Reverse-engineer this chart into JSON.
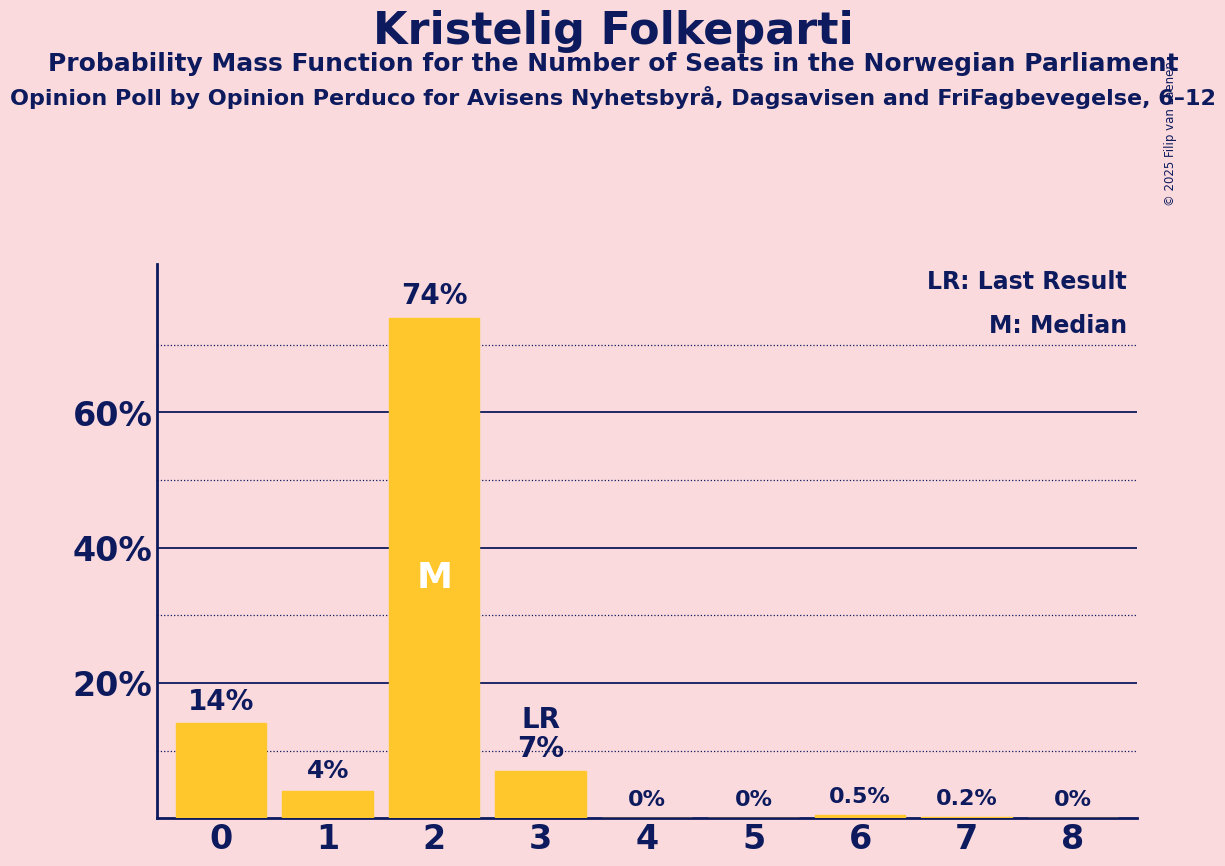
{
  "title": "Kristelig Folkeparti",
  "subtitle": "Probability Mass Function for the Number of Seats in the Norwegian Parliament",
  "subsubtitle": "Opinion Poll by Opinion Perduco for Avisens Nyhetsbyrå, Dagsavisen and FriFagbevegelse, 6–12",
  "copyright": "© 2025 Filip van Laenen",
  "categories": [
    0,
    1,
    2,
    3,
    4,
    5,
    6,
    7,
    8
  ],
  "values": [
    0.14,
    0.04,
    0.74,
    0.07,
    0.0,
    0.0,
    0.005,
    0.002,
    0.0
  ],
  "labels": [
    "14%",
    "4%",
    "74%",
    "7%",
    "0%",
    "0%",
    "0.5%",
    "0.2%",
    "0%"
  ],
  "bar_color": "#FFC72C",
  "background_color": "#FADADD",
  "title_color": "#0D1B5E",
  "axis_color": "#0D1B5E",
  "median_bar": 2,
  "lr_bar": 3,
  "ylim": [
    0,
    0.82
  ],
  "yticks": [
    0.2,
    0.4,
    0.6
  ],
  "ytick_labels": [
    "20%",
    "40%",
    "60%"
  ],
  "solid_grid": [
    0.2,
    0.4,
    0.6
  ],
  "dotted_grid": [
    0.1,
    0.3,
    0.5,
    0.7
  ],
  "legend_lr": "LR: Last Result",
  "legend_m": "M: Median",
  "title_fontsize": 32,
  "subtitle_fontsize": 18,
  "subsubtitle_fontsize": 16,
  "ytick_fontsize": 24,
  "xtick_fontsize": 24,
  "label_fontsize": 18,
  "legend_fontsize": 17
}
